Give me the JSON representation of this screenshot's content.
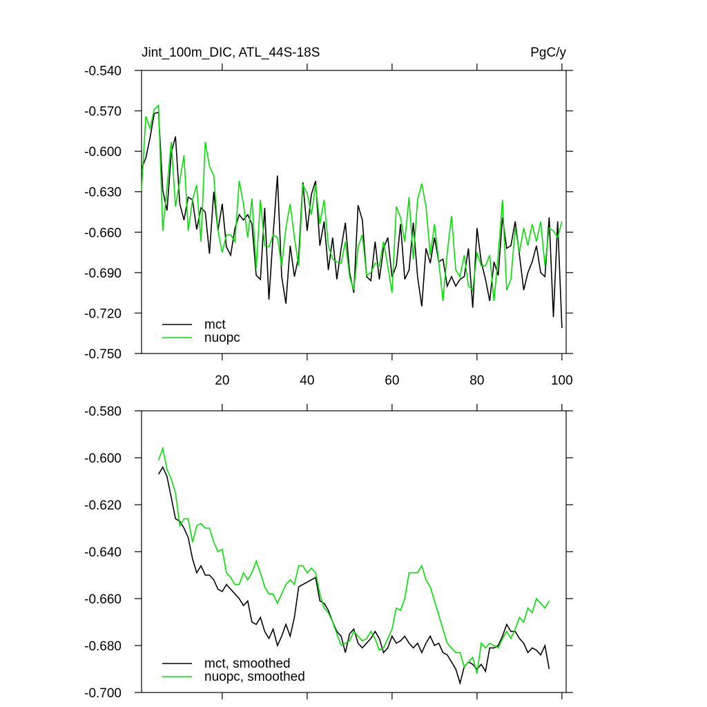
{
  "chart_data": [
    {
      "type": "line",
      "title": "Jint_100m_DIC, ATL_44S-18S",
      "units": "PgC/y",
      "x": [
        1,
        2,
        3,
        4,
        5,
        6,
        7,
        8,
        9,
        10,
        11,
        12,
        13,
        14,
        15,
        16,
        17,
        18,
        19,
        20,
        21,
        22,
        23,
        24,
        25,
        26,
        27,
        28,
        29,
        30,
        31,
        32,
        33,
        34,
        35,
        36,
        37,
        38,
        39,
        40,
        41,
        42,
        43,
        44,
        45,
        46,
        47,
        48,
        49,
        50,
        51,
        52,
        53,
        54,
        55,
        56,
        57,
        58,
        59,
        60,
        61,
        62,
        63,
        64,
        65,
        66,
        67,
        68,
        69,
        70,
        71,
        72,
        73,
        74,
        75,
        76,
        77,
        78,
        79,
        80,
        81,
        82,
        83,
        84,
        85,
        86,
        87,
        88,
        89,
        90,
        91,
        92,
        93,
        94,
        95,
        96,
        97,
        98,
        99,
        100
      ],
      "series": [
        {
          "name": "mct",
          "color": "#000000",
          "values": [
            -0.613,
            -0.605,
            -0.59,
            -0.572,
            -0.571,
            -0.629,
            -0.644,
            -0.601,
            -0.589,
            -0.639,
            -0.651,
            -0.634,
            -0.636,
            -0.658,
            -0.642,
            -0.645,
            -0.676,
            -0.63,
            -0.659,
            -0.639,
            -0.671,
            -0.677,
            -0.657,
            -0.647,
            -0.651,
            -0.647,
            -0.654,
            -0.692,
            -0.695,
            -0.642,
            -0.71,
            -0.662,
            -0.618,
            -0.693,
            -0.713,
            -0.67,
            -0.693,
            -0.678,
            -0.623,
            -0.659,
            -0.632,
            -0.622,
            -0.67,
            -0.652,
            -0.688,
            -0.664,
            -0.695,
            -0.672,
            -0.653,
            -0.69,
            -0.705,
            -0.64,
            -0.651,
            -0.693,
            -0.696,
            -0.667,
            -0.695,
            -0.672,
            -0.664,
            -0.693,
            -0.685,
            -0.654,
            -0.695,
            -0.688,
            -0.653,
            -0.693,
            -0.715,
            -0.672,
            -0.683,
            -0.664,
            -0.682,
            -0.68,
            -0.7,
            -0.693,
            -0.7,
            -0.695,
            -0.693,
            -0.672,
            -0.716,
            -0.657,
            -0.682,
            -0.695,
            -0.711,
            -0.682,
            -0.692,
            -0.649,
            -0.672,
            -0.67,
            -0.652,
            -0.677,
            -0.703,
            -0.69,
            -0.682,
            -0.67,
            -0.69,
            -0.693,
            -0.649,
            -0.723,
            -0.652,
            -0.731
          ]
        },
        {
          "name": "nuopc",
          "color": "#00e000",
          "values": [
            -0.629,
            -0.574,
            -0.583,
            -0.569,
            -0.566,
            -0.659,
            -0.627,
            -0.593,
            -0.641,
            -0.622,
            -0.603,
            -0.659,
            -0.636,
            -0.625,
            -0.667,
            -0.593,
            -0.611,
            -0.618,
            -0.659,
            -0.675,
            -0.662,
            -0.662,
            -0.667,
            -0.622,
            -0.639,
            -0.664,
            -0.635,
            -0.687,
            -0.636,
            -0.67,
            -0.671,
            -0.662,
            -0.664,
            -0.685,
            -0.657,
            -0.639,
            -0.664,
            -0.685,
            -0.625,
            -0.631,
            -0.647,
            -0.625,
            -0.654,
            -0.636,
            -0.67,
            -0.68,
            -0.682,
            -0.683,
            -0.667,
            -0.693,
            -0.703,
            -0.671,
            -0.662,
            -0.692,
            -0.69,
            -0.683,
            -0.685,
            -0.667,
            -0.685,
            -0.705,
            -0.641,
            -0.649,
            -0.667,
            -0.634,
            -0.68,
            -0.636,
            -0.624,
            -0.641,
            -0.677,
            -0.654,
            -0.682,
            -0.711,
            -0.675,
            -0.648,
            -0.688,
            -0.693,
            -0.677,
            -0.7,
            -0.703,
            -0.675,
            -0.685,
            -0.685,
            -0.677,
            -0.711,
            -0.677,
            -0.636,
            -0.703,
            -0.695,
            -0.657,
            -0.675,
            -0.657,
            -0.67,
            -0.654,
            -0.667,
            -0.652,
            -0.685,
            -0.657,
            -0.659,
            -0.664,
            -0.652
          ]
        }
      ],
      "xlim": [
        1,
        101
      ],
      "xticks": [
        20,
        40,
        60,
        80,
        100
      ],
      "ylim": [
        -0.75,
        -0.54
      ],
      "yticks": [
        {
          "value": -0.54,
          "label": "-0.540"
        },
        {
          "value": -0.57,
          "label": "-0.570"
        },
        {
          "value": -0.6,
          "label": "-0.600"
        },
        {
          "value": -0.63,
          "label": "-0.630"
        },
        {
          "value": -0.66,
          "label": "-0.660"
        },
        {
          "value": -0.69,
          "label": "-0.690"
        },
        {
          "value": -0.72,
          "label": "-0.720"
        },
        {
          "value": -0.75,
          "label": "-0.750"
        }
      ],
      "legend": "lower left"
    },
    {
      "type": "line",
      "x": [
        5,
        6,
        7,
        8,
        9,
        10,
        11,
        12,
        13,
        14,
        15,
        16,
        17,
        18,
        19,
        20,
        21,
        22,
        23,
        24,
        25,
        26,
        27,
        28,
        29,
        30,
        31,
        32,
        33,
        34,
        35,
        36,
        37,
        38,
        39,
        40,
        41,
        42,
        43,
        44,
        45,
        46,
        47,
        48,
        49,
        50,
        51,
        52,
        53,
        54,
        55,
        56,
        57,
        58,
        59,
        60,
        61,
        62,
        63,
        64,
        65,
        66,
        67,
        68,
        69,
        70,
        71,
        72,
        73,
        74,
        75,
        76,
        77,
        78,
        79,
        80,
        81,
        82,
        83,
        84,
        85,
        86,
        87,
        88,
        89,
        90,
        91,
        92,
        93,
        94,
        95,
        96,
        97
      ],
      "series": [
        {
          "name": "mct, smoothed",
          "color": "#000000",
          "values": [
            -0.607,
            -0.604,
            -0.608,
            -0.617,
            -0.626,
            -0.627,
            -0.63,
            -0.634,
            -0.643,
            -0.649,
            -0.646,
            -0.65,
            -0.65,
            -0.652,
            -0.656,
            -0.657,
            -0.654,
            -0.656,
            -0.658,
            -0.66,
            -0.663,
            -0.661,
            -0.67,
            -0.671,
            -0.668,
            -0.674,
            -0.677,
            -0.673,
            -0.68,
            -0.676,
            -0.671,
            -0.676,
            -0.668,
            -0.655,
            -0.654,
            -0.653,
            -0.652,
            -0.651,
            -0.661,
            -0.662,
            -0.665,
            -0.67,
            -0.674,
            -0.676,
            -0.683,
            -0.675,
            -0.673,
            -0.679,
            -0.681,
            -0.679,
            -0.677,
            -0.674,
            -0.677,
            -0.683,
            -0.681,
            -0.676,
            -0.679,
            -0.678,
            -0.676,
            -0.679,
            -0.681,
            -0.679,
            -0.683,
            -0.679,
            -0.676,
            -0.68,
            -0.679,
            -0.683,
            -0.684,
            -0.687,
            -0.69,
            -0.696,
            -0.689,
            -0.687,
            -0.688,
            -0.69,
            -0.688,
            -0.691,
            -0.681,
            -0.681,
            -0.68,
            -0.676,
            -0.671,
            -0.674,
            -0.674,
            -0.677,
            -0.679,
            -0.683,
            -0.681,
            -0.682,
            -0.684,
            -0.68,
            -0.69
          ]
        },
        {
          "name": "nuopc, smoothed",
          "color": "#00e000",
          "values": [
            -0.601,
            -0.596,
            -0.605,
            -0.609,
            -0.615,
            -0.629,
            -0.626,
            -0.626,
            -0.636,
            -0.629,
            -0.628,
            -0.63,
            -0.63,
            -0.636,
            -0.64,
            -0.639,
            -0.649,
            -0.651,
            -0.654,
            -0.654,
            -0.649,
            -0.652,
            -0.649,
            -0.644,
            -0.649,
            -0.655,
            -0.658,
            -0.658,
            -0.662,
            -0.658,
            -0.654,
            -0.652,
            -0.654,
            -0.646,
            -0.646,
            -0.649,
            -0.647,
            -0.649,
            -0.658,
            -0.664,
            -0.666,
            -0.67,
            -0.675,
            -0.68,
            -0.679,
            -0.678,
            -0.674,
            -0.676,
            -0.678,
            -0.677,
            -0.674,
            -0.677,
            -0.682,
            -0.681,
            -0.677,
            -0.673,
            -0.664,
            -0.665,
            -0.66,
            -0.649,
            -0.649,
            -0.649,
            -0.646,
            -0.652,
            -0.655,
            -0.661,
            -0.667,
            -0.673,
            -0.679,
            -0.681,
            -0.683,
            -0.683,
            -0.689,
            -0.687,
            -0.685,
            -0.692,
            -0.679,
            -0.681,
            -0.679,
            -0.68,
            -0.681,
            -0.677,
            -0.674,
            -0.677,
            -0.673,
            -0.668,
            -0.67,
            -0.664,
            -0.666,
            -0.66,
            -0.662,
            -0.664,
            -0.661
          ]
        }
      ],
      "xlim": [
        1,
        101
      ],
      "ylim": [
        -0.7,
        -0.58
      ],
      "yticks": [
        {
          "value": -0.58,
          "label": "-0.580"
        },
        {
          "value": -0.6,
          "label": "-0.600"
        },
        {
          "value": -0.62,
          "label": "-0.620"
        },
        {
          "value": -0.64,
          "label": "-0.640"
        },
        {
          "value": -0.66,
          "label": "-0.660"
        },
        {
          "value": -0.68,
          "label": "-0.680"
        },
        {
          "value": -0.7,
          "label": "-0.700"
        }
      ],
      "legend": "lower left"
    }
  ]
}
